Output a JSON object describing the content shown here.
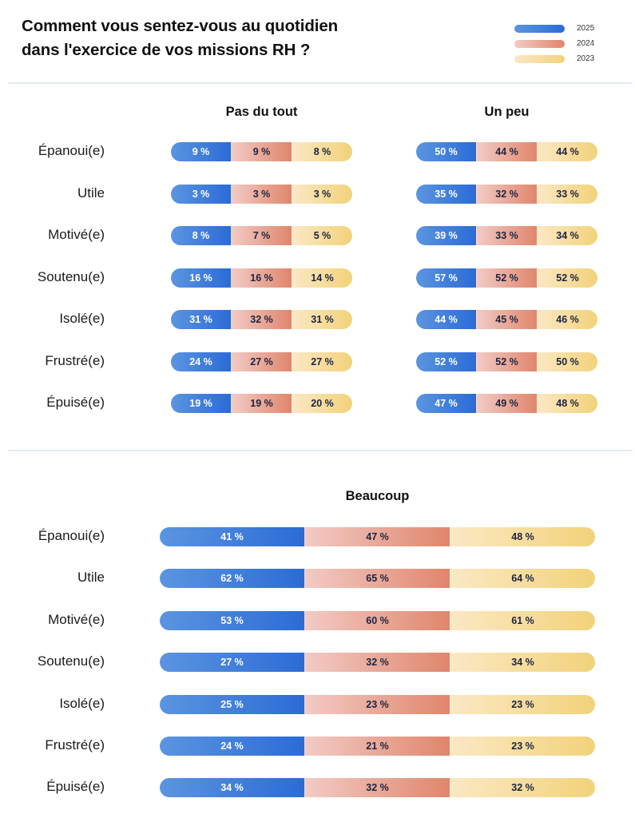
{
  "title_lines": [
    "Comment vous sentez-vous au quotidien",
    "dans l'exercice de vos missions RH ?"
  ],
  "colors": {
    "2025": "#2b6bd6",
    "2024": "#e0866c",
    "2023": "#f2d27a"
  },
  "legend": [
    {
      "label": "2025",
      "key": "y2025"
    },
    {
      "label": "2024",
      "key": "y2024"
    },
    {
      "label": "2023",
      "key": "y2023"
    }
  ],
  "chart_data": {
    "type": "table",
    "title": "Comment vous sentez-vous au quotidien dans l'exercice de vos missions RH ?",
    "years": [
      "2025",
      "2024",
      "2023"
    ],
    "categories": [
      "Épanoui(e)",
      "Utile",
      "Motivé(e)",
      "Soutenu(e)",
      "Isolé(e)",
      "Frustré(e)",
      "Épuisé(e)"
    ],
    "unit": "%",
    "panels": [
      {
        "name": "Pas du tout",
        "series": [
          {
            "name": "2025",
            "values": [
              9,
              3,
              8,
              16,
              31,
              24,
              19
            ]
          },
          {
            "name": "2024",
            "values": [
              9,
              3,
              7,
              16,
              32,
              27,
              19
            ]
          },
          {
            "name": "2023",
            "values": [
              8,
              3,
              5,
              14,
              31,
              27,
              20
            ]
          }
        ]
      },
      {
        "name": "Un peu",
        "series": [
          {
            "name": "2025",
            "values": [
              50,
              35,
              39,
              57,
              44,
              52,
              47
            ]
          },
          {
            "name": "2024",
            "values": [
              44,
              32,
              33,
              52,
              45,
              52,
              49
            ]
          },
          {
            "name": "2023",
            "values": [
              44,
              33,
              34,
              52,
              46,
              50,
              48
            ]
          }
        ]
      },
      {
        "name": "Beaucoup",
        "series": [
          {
            "name": "2025",
            "values": [
              41,
              62,
              53,
              27,
              25,
              24,
              34
            ]
          },
          {
            "name": "2024",
            "values": [
              47,
              65,
              60,
              32,
              23,
              21,
              32
            ]
          },
          {
            "name": "2023",
            "values": [
              48,
              64,
              61,
              34,
              23,
              23,
              32
            ]
          }
        ]
      }
    ],
    "legend_position": "top-right"
  }
}
